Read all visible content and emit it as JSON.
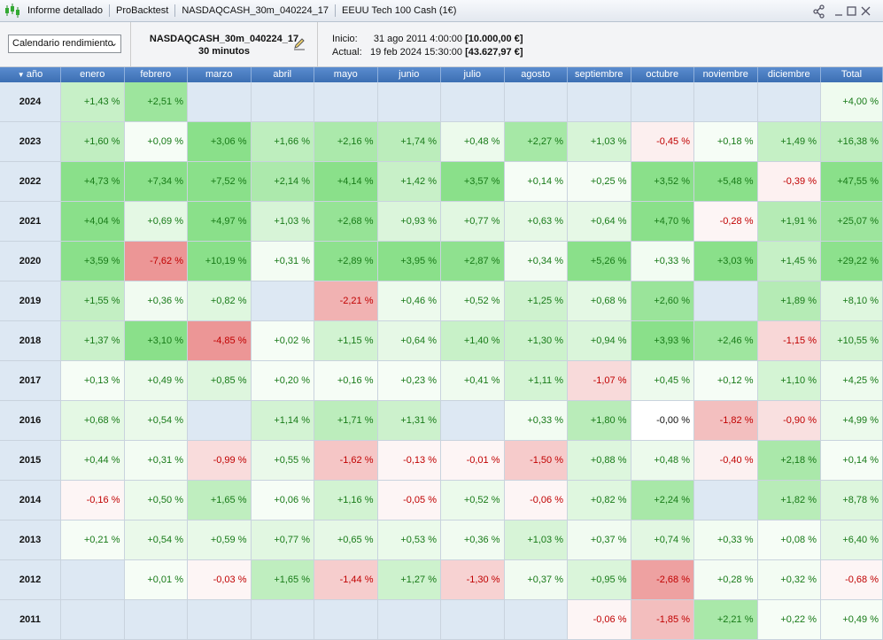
{
  "header": {
    "tabs": [
      "Informe detallado",
      "ProBacktest",
      "NASDAQCASH_30m_040224_17",
      "EEUU Tech 100 Cash (1€)"
    ]
  },
  "toolbar": {
    "select": "Calendario rendimiento",
    "system": "NASDAQCASH_30m_040224_17",
    "timeframe": "30 minutos",
    "start_label": "Inicio:",
    "start_date": "31 ago 2011 4:00:00",
    "start_capital": "[10.000,00 €]",
    "current_label": "Actual:",
    "current_date": "19 feb 2024 15:30:00",
    "current_capital": "[43.627,97 €]"
  },
  "table": {
    "columns": [
      "año",
      "enero",
      "febrero",
      "marzo",
      "abril",
      "mayo",
      "junio",
      "julio",
      "agosto",
      "septiembre",
      "octubre",
      "noviembre",
      "diciembre",
      "Total"
    ],
    "rows": [
      {
        "year": "2024",
        "cells": [
          "+1,43 %",
          "+2,51 %",
          null,
          null,
          null,
          null,
          null,
          null,
          null,
          null,
          null,
          null,
          "+4,00 %"
        ]
      },
      {
        "year": "2023",
        "cells": [
          "+1,60 %",
          "+0,09 %",
          "+3,06 %",
          "+1,66 %",
          "+2,16 %",
          "+1,74 %",
          "+0,48 %",
          "+2,27 %",
          "+1,03 %",
          "-0,45 %",
          "+0,18 %",
          "+1,49 %",
          "+16,38 %"
        ]
      },
      {
        "year": "2022",
        "cells": [
          "+4,73 %",
          "+7,34 %",
          "+7,52 %",
          "+2,14 %",
          "+4,14 %",
          "+1,42 %",
          "+3,57 %",
          "+0,14 %",
          "+0,25 %",
          "+3,52 %",
          "+5,48 %",
          "-0,39 %",
          "+47,55 %"
        ]
      },
      {
        "year": "2021",
        "cells": [
          "+4,04 %",
          "+0,69 %",
          "+4,97 %",
          "+1,03 %",
          "+2,68 %",
          "+0,93 %",
          "+0,77 %",
          "+0,63 %",
          "+0,64 %",
          "+4,70 %",
          "-0,28 %",
          "+1,91 %",
          "+25,07 %"
        ]
      },
      {
        "year": "2020",
        "cells": [
          "+3,59 %",
          "-7,62 %",
          "+10,19 %",
          "+0,31 %",
          "+2,89 %",
          "+3,95 %",
          "+2,87 %",
          "+0,34 %",
          "+5,26 %",
          "+0,33 %",
          "+3,03 %",
          "+1,45 %",
          "+29,22 %"
        ]
      },
      {
        "year": "2019",
        "cells": [
          "+1,55 %",
          "+0,36 %",
          "+0,82 %",
          null,
          "-2,21 %",
          "+0,46 %",
          "+0,52 %",
          "+1,25 %",
          "+0,68 %",
          "+2,60 %",
          null,
          "+1,89 %",
          "+8,10 %"
        ]
      },
      {
        "year": "2018",
        "cells": [
          "+1,37 %",
          "+3,10 %",
          "-4,85 %",
          "+0,02 %",
          "+1,15 %",
          "+0,64 %",
          "+1,40 %",
          "+1,30 %",
          "+0,94 %",
          "+3,93 %",
          "+2,46 %",
          "-1,15 %",
          "+10,55 %"
        ]
      },
      {
        "year": "2017",
        "cells": [
          "+0,13 %",
          "+0,49 %",
          "+0,85 %",
          "+0,20 %",
          "+0,16 %",
          "+0,23 %",
          "+0,41 %",
          "+1,11 %",
          "-1,07 %",
          "+0,45 %",
          "+0,12 %",
          "+1,10 %",
          "+4,25 %"
        ]
      },
      {
        "year": "2016",
        "cells": [
          "+0,68 %",
          "+0,54 %",
          null,
          "+1,14 %",
          "+1,71 %",
          "+1,31 %",
          null,
          "+0,33 %",
          "+1,80 %",
          "-0,00 %",
          "-1,82 %",
          "-0,90 %",
          "+4,99 %"
        ]
      },
      {
        "year": "2015",
        "cells": [
          "+0,44 %",
          "+0,31 %",
          "-0,99 %",
          "+0,55 %",
          "-1,62 %",
          "-0,13 %",
          "-0,01 %",
          "-1,50 %",
          "+0,88 %",
          "+0,48 %",
          "-0,40 %",
          "+2,18 %",
          "+0,14 %"
        ]
      },
      {
        "year": "2014",
        "cells": [
          "-0,16 %",
          "+0,50 %",
          "+1,65 %",
          "+0,06 %",
          "+1,16 %",
          "-0,05 %",
          "+0,52 %",
          "-0,06 %",
          "+0,82 %",
          "+2,24 %",
          null,
          "+1,82 %",
          "+8,78 %"
        ]
      },
      {
        "year": "2013",
        "cells": [
          "+0,21 %",
          "+0,54 %",
          "+0,59 %",
          "+0,77 %",
          "+0,65 %",
          "+0,53 %",
          "+0,36 %",
          "+1,03 %",
          "+0,37 %",
          "+0,74 %",
          "+0,33 %",
          "+0,08 %",
          "+6,40 %"
        ]
      },
      {
        "year": "2012",
        "cells": [
          null,
          "+0,01 %",
          "-0,03 %",
          "+1,65 %",
          "-1,44 %",
          "+1,27 %",
          "-1,30 %",
          "+0,37 %",
          "+0,95 %",
          "-2,68 %",
          "+0,28 %",
          "+0,32 %",
          "-0,68 %"
        ]
      },
      {
        "year": "2011",
        "cells": [
          null,
          null,
          null,
          null,
          null,
          null,
          null,
          null,
          "-0,06 %",
          "-1,85 %",
          "+2,21 %",
          "+0,22 %",
          "+0,49 %"
        ]
      }
    ]
  }
}
